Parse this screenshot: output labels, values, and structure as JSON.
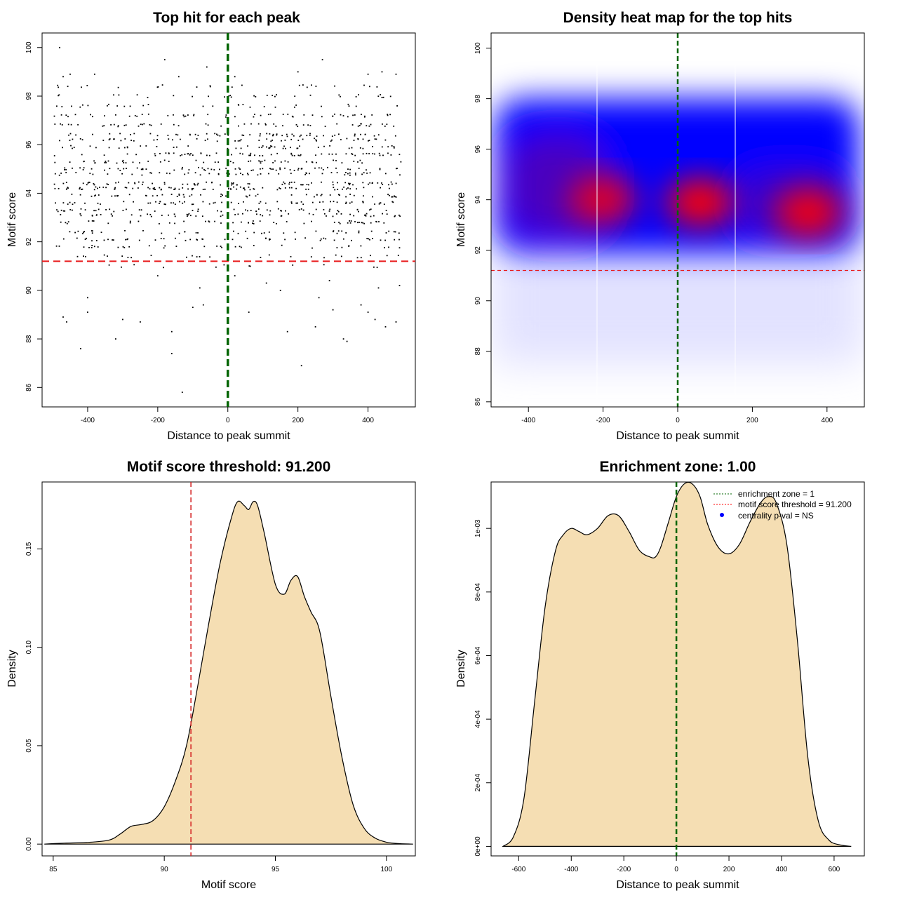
{
  "chart_data": [
    {
      "type": "scatter",
      "title": "Top hit for each peak",
      "xlabel": "Distance to peak summit",
      "ylabel": "Motif score",
      "xlim": [
        -530,
        535
      ],
      "ylim": [
        85.2,
        100.6
      ],
      "xticks": [
        -400,
        -200,
        0,
        200,
        400
      ],
      "yticks": [
        86,
        88,
        90,
        92,
        94,
        96,
        98,
        100
      ],
      "threshold": 91.2,
      "center": 0,
      "points": [
        [
          -480,
          100.0
        ],
        [
          -470,
          98.8
        ],
        [
          -450,
          98.9
        ],
        [
          -380,
          98.9
        ],
        [
          -180,
          99.5
        ],
        [
          -140,
          98.8
        ],
        [
          -60,
          99.2
        ],
        [
          20,
          98.8
        ],
        [
          200,
          99.0
        ],
        [
          270,
          99.5
        ],
        [
          400,
          98.9
        ],
        [
          440,
          99.0
        ],
        [
          480,
          98.9
        ],
        [
          -470,
          88.9
        ],
        [
          -460,
          88.7
        ],
        [
          -420,
          87.6
        ],
        [
          -400,
          89.1
        ],
        [
          -300,
          88.8
        ],
        [
          -250,
          88.7
        ],
        [
          -160,
          88.3
        ],
        [
          -100,
          89.3
        ],
        [
          -70,
          89.4
        ],
        [
          60,
          89.1
        ],
        [
          170,
          88.3
        ],
        [
          250,
          88.5
        ],
        [
          260,
          89.7
        ],
        [
          300,
          89.2
        ],
        [
          330,
          88.0
        ],
        [
          340,
          87.9
        ],
        [
          380,
          89.4
        ],
        [
          400,
          89.1
        ],
        [
          420,
          88.8
        ],
        [
          450,
          88.5
        ],
        [
          480,
          88.7
        ],
        [
          -320,
          88.0
        ],
        [
          -160,
          87.4
        ],
        [
          -130,
          85.8
        ],
        [
          210,
          86.9
        ],
        [
          -400,
          89.7
        ],
        [
          110,
          90.3
        ],
        [
          -200,
          90.6
        ],
        [
          -80,
          90.1
        ],
        [
          20,
          90.6
        ],
        [
          150,
          90.0
        ],
        [
          290,
          90.4
        ],
        [
          430,
          90.1
        ],
        [
          490,
          90.2
        ]
      ],
      "random_points": 1200,
      "seed": 7
    },
    {
      "type": "heatmap",
      "title": "Density heat map for the top hits",
      "xlabel": "Distance to peak summit",
      "ylabel": "Motif score",
      "xlim": [
        -500,
        500
      ],
      "ylim": [
        85.8,
        100.6
      ],
      "xticks": [
        -400,
        -200,
        0,
        200,
        400
      ],
      "yticks": [
        86,
        88,
        90,
        92,
        94,
        96,
        98,
        100
      ],
      "threshold": 91.2,
      "center": 0,
      "hotspots": [
        {
          "x": -200,
          "y": 94.0,
          "strength": 0.85
        },
        {
          "x": 60,
          "y": 93.9,
          "strength": 1.0
        },
        {
          "x": 350,
          "y": 93.5,
          "strength": 0.95
        }
      ],
      "palette": [
        "#ffffff",
        "#0000ff",
        "#ff0000"
      ]
    },
    {
      "type": "area",
      "title": "Motif score threshold: 91.200",
      "xlabel": "Motif score",
      "ylabel": "Density",
      "xlim": [
        84.5,
        101.3
      ],
      "ylim": [
        -0.006,
        0.184
      ],
      "xticks": [
        85,
        90,
        95,
        100
      ],
      "yticks": [
        0.0,
        0.05,
        0.1,
        0.15
      ],
      "ytick_labels": [
        "0.00",
        "0.05",
        "0.10",
        "0.15"
      ],
      "x": [
        84.6,
        85.5,
        86.5,
        87.5,
        88.0,
        88.5,
        89.0,
        89.5,
        90.0,
        90.5,
        91.0,
        91.5,
        92.0,
        92.5,
        93.0,
        93.3,
        93.6,
        93.8,
        94.0,
        94.2,
        94.5,
        95.0,
        95.4,
        95.7,
        96.0,
        96.3,
        96.6,
        97.0,
        97.5,
        98.0,
        98.5,
        99.0,
        99.5,
        100.0,
        100.5,
        101.2
      ],
      "y": [
        0.0,
        0.0005,
        0.0008,
        0.002,
        0.005,
        0.009,
        0.01,
        0.012,
        0.019,
        0.032,
        0.05,
        0.08,
        0.112,
        0.142,
        0.165,
        0.174,
        0.172,
        0.17,
        0.174,
        0.172,
        0.158,
        0.132,
        0.127,
        0.134,
        0.136,
        0.126,
        0.118,
        0.108,
        0.075,
        0.044,
        0.02,
        0.008,
        0.003,
        0.001,
        0.0003,
        0.0
      ],
      "threshold": 91.2,
      "fill": "#f5deb3"
    },
    {
      "type": "area",
      "title": "Enrichment zone: 1.00",
      "xlabel": "Distance to peak summit",
      "ylabel": "Density",
      "xlim": [
        -705,
        715
      ],
      "ylim": [
        -3e-05,
        0.001146
      ],
      "xticks": [
        -600,
        -400,
        -200,
        0,
        200,
        400,
        600
      ],
      "yticks": [
        0.0,
        0.0002,
        0.0004,
        0.0006,
        0.0008,
        0.001
      ],
      "ytick_labels": [
        "0e+00",
        "2e-04",
        "4e-04",
        "6e-04",
        "8e-04",
        "1e-03"
      ],
      "x": [
        -660,
        -620,
        -580,
        -540,
        -500,
        -460,
        -430,
        -400,
        -370,
        -340,
        -300,
        -260,
        -220,
        -180,
        -140,
        -100,
        -80,
        -60,
        -30,
        0,
        30,
        60,
        90,
        120,
        160,
        200,
        240,
        280,
        320,
        350,
        380,
        420,
        460,
        500,
        540,
        580,
        620,
        665
      ],
      "y": [
        0.0,
        3e-05,
        0.00015,
        0.00045,
        0.00075,
        0.00093,
        0.00098,
        0.001,
        0.00099,
        0.00098,
        0.001,
        0.00104,
        0.00104,
        0.00099,
        0.00093,
        0.00091,
        0.00091,
        0.00094,
        0.00102,
        0.0011,
        0.00114,
        0.00114,
        0.0011,
        0.00101,
        0.00094,
        0.00092,
        0.00095,
        0.00102,
        0.00108,
        0.0011,
        0.00108,
        0.00095,
        0.00065,
        0.00028,
        8e-05,
        2e-05,
        5e-06,
        0.0
      ],
      "center": 0,
      "fill": "#f5deb3",
      "legend": [
        {
          "label": "enrichment zone = 1",
          "style": "green-dotted"
        },
        {
          "label": "motif score threshold = 91.200",
          "style": "red-dotted"
        },
        {
          "label": "centrality p-val = NS",
          "style": "blue-dot"
        }
      ]
    }
  ]
}
